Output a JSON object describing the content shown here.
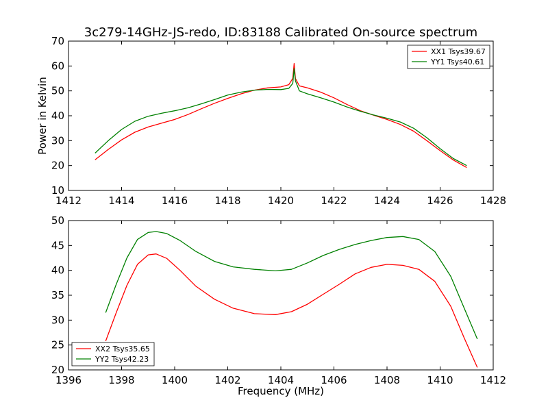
{
  "figure": {
    "title": "3c279-14GHz-JS-redo, ID:83188 Calibrated On-source spectrum",
    "colors": {
      "xx": "#ff0000",
      "yy": "#008000",
      "axes": "#000000",
      "background": "#ffffff"
    }
  },
  "chart_data": [
    {
      "type": "line",
      "panel": "top",
      "title": "3c279-14GHz-JS-redo, ID:83188 Calibrated On-source spectrum",
      "xlabel": "",
      "ylabel": "Power in Kelvin",
      "xlim": [
        1412,
        1428
      ],
      "ylim": [
        10,
        70
      ],
      "xticks": [
        1412,
        1414,
        1416,
        1418,
        1420,
        1422,
        1424,
        1426,
        1428
      ],
      "yticks": [
        10,
        20,
        30,
        40,
        50,
        60,
        70
      ],
      "grid": false,
      "legend": "top-right",
      "series": [
        {
          "name": "XX1 Tsys39.67",
          "color": "#ff0000",
          "x": [
            1413.0,
            1413.5,
            1414.0,
            1414.5,
            1415.0,
            1415.5,
            1416.0,
            1416.5,
            1417.0,
            1417.5,
            1418.0,
            1418.5,
            1419.0,
            1419.5,
            1420.0,
            1420.3,
            1420.45,
            1420.5,
            1420.55,
            1420.7,
            1421.0,
            1421.5,
            1422.0,
            1422.5,
            1423.0,
            1423.5,
            1424.0,
            1424.5,
            1425.0,
            1425.5,
            1426.0,
            1426.5,
            1427.0
          ],
          "y": [
            22.3,
            26.5,
            30.3,
            33.4,
            35.5,
            37.0,
            38.5,
            40.5,
            42.8,
            45.0,
            47.0,
            48.8,
            50.3,
            51.2,
            51.6,
            52.5,
            55.0,
            61.0,
            55.0,
            52.0,
            51.2,
            49.5,
            47.2,
            44.5,
            42.0,
            40.2,
            38.5,
            36.5,
            33.8,
            30.0,
            26.0,
            22.2,
            19.2
          ]
        },
        {
          "name": "YY1 Tsys40.61",
          "color": "#008000",
          "x": [
            1413.0,
            1413.5,
            1414.0,
            1414.5,
            1415.0,
            1415.5,
            1416.0,
            1416.5,
            1417.0,
            1417.5,
            1418.0,
            1418.5,
            1419.0,
            1419.5,
            1420.0,
            1420.3,
            1420.45,
            1420.5,
            1420.55,
            1420.7,
            1421.0,
            1421.5,
            1422.0,
            1422.5,
            1423.0,
            1423.5,
            1424.0,
            1424.5,
            1425.0,
            1425.5,
            1426.0,
            1426.5,
            1427.0
          ],
          "y": [
            25.0,
            30.0,
            34.5,
            37.8,
            39.8,
            41.0,
            42.0,
            43.2,
            44.8,
            46.5,
            48.3,
            49.5,
            50.3,
            50.6,
            50.5,
            51.0,
            53.0,
            59.0,
            54.0,
            50.0,
            48.8,
            47.2,
            45.5,
            43.5,
            41.8,
            40.3,
            39.0,
            37.5,
            35.0,
            31.2,
            26.8,
            22.8,
            20.0
          ]
        }
      ]
    },
    {
      "type": "line",
      "panel": "bottom",
      "title": "",
      "xlabel": "Frequency (MHz)",
      "ylabel": "",
      "xlim": [
        1396,
        1412
      ],
      "ylim": [
        20,
        50
      ],
      "xticks": [
        1396,
        1398,
        1400,
        1402,
        1404,
        1406,
        1408,
        1410,
        1412
      ],
      "yticks": [
        20,
        25,
        30,
        35,
        40,
        45,
        50
      ],
      "grid": false,
      "legend": "bottom-left",
      "series": [
        {
          "name": "XX2 Tsys35.65",
          "color": "#ff0000",
          "x": [
            1397.4,
            1397.8,
            1398.2,
            1398.6,
            1399.0,
            1399.3,
            1399.7,
            1400.2,
            1400.8,
            1401.5,
            1402.2,
            1403.0,
            1403.8,
            1404.4,
            1405.0,
            1405.6,
            1406.2,
            1406.8,
            1407.4,
            1408.0,
            1408.6,
            1409.2,
            1409.8,
            1410.4,
            1410.9,
            1411.4
          ],
          "y": [
            25.8,
            31.5,
            37.0,
            41.2,
            43.1,
            43.3,
            42.4,
            40.0,
            36.8,
            34.2,
            32.4,
            31.3,
            31.1,
            31.7,
            33.2,
            35.2,
            37.2,
            39.3,
            40.6,
            41.2,
            41.0,
            40.2,
            37.8,
            32.8,
            26.5,
            20.5
          ]
        },
        {
          "name": "YY2 Tsys42.23",
          "color": "#008000",
          "x": [
            1397.4,
            1397.8,
            1398.2,
            1398.6,
            1399.0,
            1399.3,
            1399.7,
            1400.2,
            1400.8,
            1401.5,
            1402.2,
            1403.0,
            1403.8,
            1404.4,
            1405.0,
            1405.6,
            1406.2,
            1406.8,
            1407.4,
            1408.0,
            1408.6,
            1409.2,
            1409.8,
            1410.4,
            1410.9,
            1411.4
          ],
          "y": [
            31.5,
            37.2,
            42.5,
            46.2,
            47.6,
            47.8,
            47.4,
            46.0,
            43.8,
            41.8,
            40.7,
            40.2,
            39.9,
            40.2,
            41.5,
            43.0,
            44.2,
            45.2,
            46.0,
            46.6,
            46.8,
            46.2,
            43.8,
            38.8,
            32.5,
            26.2
          ]
        }
      ]
    }
  ]
}
